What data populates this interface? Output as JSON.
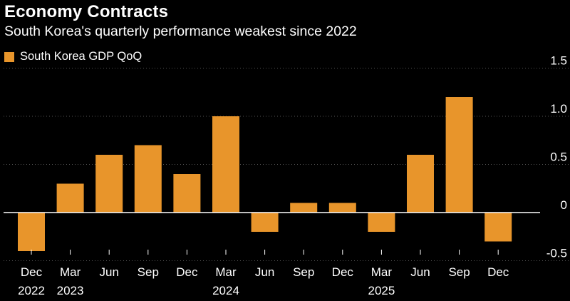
{
  "title": "Economy Contracts",
  "subtitle": "South Korea's quarterly performance weakest since 2022",
  "colors": {
    "bar": "#E8952B",
    "background": "#000000",
    "text": "#FFFFFF",
    "grid": "#555555",
    "zero_line": "#FFFFFF"
  },
  "chart_data": {
    "type": "bar",
    "title": "Economy Contracts",
    "subtitle": "South Korea's quarterly performance weakest since 2022",
    "legend": [
      "South Korea GDP QoQ"
    ],
    "legend_position": "top-left",
    "categories": [
      "Dec",
      "Mar",
      "Jun",
      "Sep",
      "Dec",
      "Mar",
      "Jun",
      "Sep",
      "Dec",
      "Mar",
      "Jun",
      "Sep",
      "Dec"
    ],
    "year_labels": [
      "2022",
      "2023",
      "",
      "",
      "",
      "2024",
      "",
      "",
      "",
      "2025",
      "",
      "",
      ""
    ],
    "series": [
      {
        "name": "South Korea GDP QoQ",
        "values": [
          -0.4,
          0.3,
          0.6,
          0.7,
          0.4,
          1.0,
          -0.2,
          0.1,
          0.1,
          -0.2,
          0.6,
          1.2,
          -0.3
        ]
      }
    ],
    "ylim": [
      -0.6,
      1.6
    ],
    "yticks": [
      1.5,
      1.0,
      0.5,
      0,
      -0.5
    ],
    "ytick_labels": [
      "1.5",
      "1.0",
      "0.5",
      "0",
      "-0.5"
    ],
    "grid": true,
    "xlabel": "",
    "ylabel": ""
  }
}
